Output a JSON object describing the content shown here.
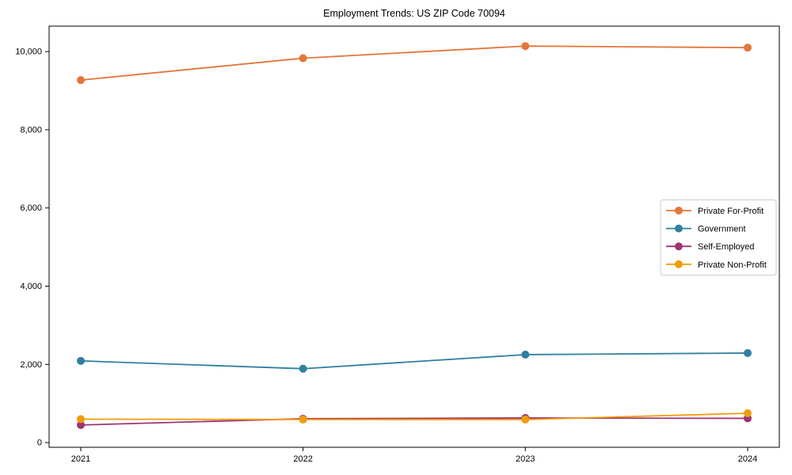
{
  "chart_data": {
    "type": "line",
    "title": "Employment Trends: US ZIP Code 70094",
    "xlabel": "",
    "ylabel": "",
    "x": [
      "2021",
      "2022",
      "2023",
      "2024"
    ],
    "series": [
      {
        "name": "Private For-Profit",
        "color": "#e4763b",
        "values": [
          9270,
          9830,
          10140,
          10100
        ]
      },
      {
        "name": "Government",
        "color": "#2f80a0",
        "values": [
          2090,
          1890,
          2250,
          2290
        ]
      },
      {
        "name": "Self-Employed",
        "color": "#9e3474",
        "values": [
          450,
          610,
          630,
          620
        ]
      },
      {
        "name": "Private Non-Profit",
        "color": "#f09d0c",
        "values": [
          600,
          590,
          590,
          750
        ]
      }
    ],
    "yticks": [
      0,
      2000,
      4000,
      6000,
      8000,
      10000
    ],
    "ytick_labels": [
      "0",
      "2,000",
      "4,000",
      "6,000",
      "8,000",
      "10,000"
    ],
    "ylim": [
      -120,
      10650
    ],
    "grid": false,
    "marker": "o",
    "legend_position": "center right",
    "colors": {
      "frame": "#000000",
      "tick_text": "#000000",
      "legend_border": "#cccccc",
      "legend_background": "#ffffff",
      "figure_background": "#ffffff"
    }
  }
}
